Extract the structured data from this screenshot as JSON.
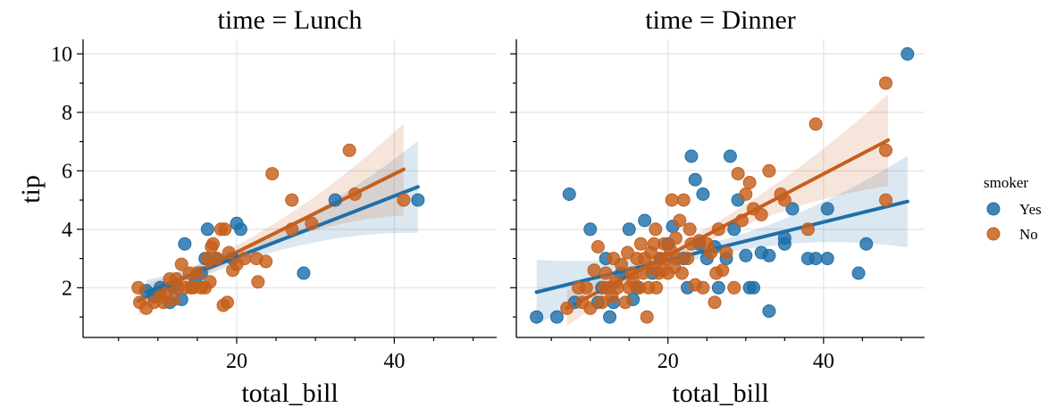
{
  "chart_data": {
    "type": "scatter",
    "xlabel": "total_bill",
    "ylabel": "tip",
    "x_ticks": [
      20,
      40
    ],
    "y_ticks": [
      2,
      4,
      6,
      8,
      10
    ],
    "xlim": [
      0.5,
      53
    ],
    "ylim": [
      0.3,
      10.5
    ],
    "grid": true,
    "colors": {
      "Yes": "#1f6fa8",
      "No": "#c65f1c"
    },
    "legend": {
      "title": "smoker",
      "placement": "right",
      "entries": [
        "Yes",
        "No"
      ]
    },
    "panels": [
      {
        "title": "time = Lunch",
        "series": [
          {
            "name": "Yes",
            "points": [
              [
                8.5,
                1.9
              ],
              [
                10.3,
                2.0
              ],
              [
                13.4,
                3.5
              ],
              [
                15.5,
                2.5
              ],
              [
                16.3,
                4.0
              ],
              [
                17.5,
                3.0
              ],
              [
                19.5,
                3.0
              ],
              [
                20.0,
                4.2
              ],
              [
                20.5,
                4.0
              ],
              [
                13.0,
                1.6
              ],
              [
                28.5,
                2.5
              ],
              [
                32.5,
                5.0
              ],
              [
                43.0,
                5.0
              ],
              [
                16.0,
                3.0
              ],
              [
                11.5,
                1.5
              ],
              [
                12.0,
                2.0
              ],
              [
                14.8,
                2.2
              ],
              [
                9.5,
                1.7
              ]
            ],
            "fit": {
              "x1": 8.5,
              "y1": 1.85,
              "x2": 43.0,
              "y2": 5.45
            }
          },
          {
            "name": "No",
            "points": [
              [
                7.5,
                2.0
              ],
              [
                7.7,
                1.5
              ],
              [
                8.5,
                1.3
              ],
              [
                9.5,
                1.5
              ],
              [
                10.3,
                1.7
              ],
              [
                10.7,
                1.5
              ],
              [
                11.0,
                1.8
              ],
              [
                11.5,
                2.3
              ],
              [
                12.0,
                1.6
              ],
              [
                12.5,
                2.0
              ],
              [
                13.0,
                2.8
              ],
              [
                13.5,
                2.0
              ],
              [
                14.0,
                2.5
              ],
              [
                14.5,
                2.0
              ],
              [
                15.0,
                2.5
              ],
              [
                15.5,
                2.0
              ],
              [
                16.0,
                2.0
              ],
              [
                16.3,
                3.0
              ],
              [
                16.6,
                2.2
              ],
              [
                17.0,
                3.5
              ],
              [
                17.5,
                3.0
              ],
              [
                18.0,
                4.0
              ],
              [
                18.5,
                4.0
              ],
              [
                18.3,
                1.4
              ],
              [
                18.8,
                1.5
              ],
              [
                19.0,
                3.2
              ],
              [
                20.0,
                2.8
              ],
              [
                21.0,
                3.0
              ],
              [
                22.5,
                3.0
              ],
              [
                22.7,
                2.2
              ],
              [
                23.7,
                2.9
              ],
              [
                24.5,
                5.9
              ],
              [
                27.0,
                5.0
              ],
              [
                27.0,
                4.0
              ],
              [
                29.5,
                4.2
              ],
              [
                34.3,
                6.7
              ],
              [
                35.0,
                5.2
              ],
              [
                41.2,
                5.0
              ],
              [
                14.2,
                2.0
              ],
              [
                12.3,
                2.3
              ],
              [
                16.8,
                3.4
              ],
              [
                19.5,
                2.6
              ]
            ],
            "fit": {
              "x1": 7.5,
              "y1": 1.55,
              "x2": 41.2,
              "y2": 6.05
            }
          }
        ]
      },
      {
        "title": "time = Dinner",
        "series": [
          {
            "name": "Yes",
            "points": [
              [
                3.1,
                1.0
              ],
              [
                5.7,
                1.0
              ],
              [
                7.3,
                5.2
              ],
              [
                8.0,
                1.5
              ],
              [
                10.0,
                4.0
              ],
              [
                11.0,
                1.5
              ],
              [
                11.5,
                2.0
              ],
              [
                12.0,
                3.0
              ],
              [
                12.5,
                1.0
              ],
              [
                13.0,
                1.5
              ],
              [
                14.0,
                2.5
              ],
              [
                15.0,
                4.0
              ],
              [
                16.0,
                2.0
              ],
              [
                17.0,
                4.3
              ],
              [
                18.0,
                2.5
              ],
              [
                19.0,
                3.0
              ],
              [
                20.0,
                3.5
              ],
              [
                20.6,
                4.1
              ],
              [
                22.0,
                3.0
              ],
              [
                22.5,
                2.0
              ],
              [
                23.0,
                6.5
              ],
              [
                23.5,
                5.7
              ],
              [
                24.0,
                3.5
              ],
              [
                25.0,
                3.0
              ],
              [
                26.0,
                3.4
              ],
              [
                26.5,
                2.0
              ],
              [
                27.5,
                3.0
              ],
              [
                28.0,
                6.5
              ],
              [
                28.5,
                4.0
              ],
              [
                29.0,
                5.0
              ],
              [
                30.0,
                3.1
              ],
              [
                30.5,
                2.0
              ],
              [
                31.0,
                2.0
              ],
              [
                32.0,
                3.2
              ],
              [
                33.0,
                3.1
              ],
              [
                33.0,
                1.2
              ],
              [
                35.0,
                3.5
              ],
              [
                35.0,
                3.7
              ],
              [
                36.0,
                4.7
              ],
              [
                38.0,
                3.0
              ],
              [
                39.0,
                3.0
              ],
              [
                40.5,
                3.0
              ],
              [
                40.5,
                4.7
              ],
              [
                44.5,
                2.5
              ],
              [
                45.5,
                3.5
              ],
              [
                50.8,
                10.0
              ],
              [
                15.5,
                1.6
              ],
              [
                24.5,
                5.2
              ]
            ],
            "fit": {
              "x1": 3.1,
              "y1": 1.85,
              "x2": 50.8,
              "y2": 4.95
            }
          },
          {
            "name": "No",
            "points": [
              [
                7.0,
                1.3
              ],
              [
                8.5,
                2.0
              ],
              [
                9.0,
                1.5
              ],
              [
                9.5,
                2.0
              ],
              [
                10.0,
                1.3
              ],
              [
                10.5,
                2.6
              ],
              [
                11.0,
                3.4
              ],
              [
                11.5,
                1.5
              ],
              [
                11.8,
                2.0
              ],
              [
                12.0,
                2.5
              ],
              [
                12.5,
                2.0
              ],
              [
                12.8,
                1.7
              ],
              [
                13.0,
                3.0
              ],
              [
                13.3,
                2.2
              ],
              [
                13.5,
                2.0
              ],
              [
                14.0,
                2.8
              ],
              [
                14.5,
                1.5
              ],
              [
                14.8,
                3.2
              ],
              [
                15.0,
                2.0
              ],
              [
                15.3,
                2.5
              ],
              [
                15.5,
                2.2
              ],
              [
                16.0,
                3.0
              ],
              [
                16.3,
                2.0
              ],
              [
                16.5,
                3.5
              ],
              [
                16.8,
                2.5
              ],
              [
                17.0,
                3.0
              ],
              [
                17.3,
                1.0
              ],
              [
                17.5,
                2.0
              ],
              [
                17.8,
                3.2
              ],
              [
                18.0,
                2.7
              ],
              [
                18.2,
                3.5
              ],
              [
                18.5,
                2.0
              ],
              [
                18.8,
                2.5
              ],
              [
                19.0,
                3.0
              ],
              [
                19.3,
                2.6
              ],
              [
                19.5,
                3.5
              ],
              [
                19.8,
                3.0
              ],
              [
                20.0,
                2.5
              ],
              [
                20.3,
                3.3
              ],
              [
                20.5,
                5.0
              ],
              [
                20.8,
                2.7
              ],
              [
                21.0,
                3.7
              ],
              [
                21.2,
                3.0
              ],
              [
                21.5,
                4.3
              ],
              [
                21.8,
                2.5
              ],
              [
                22.0,
                5.0
              ],
              [
                22.5,
                3.0
              ],
              [
                23.0,
                3.5
              ],
              [
                23.5,
                2.1
              ],
              [
                24.0,
                3.6
              ],
              [
                24.5,
                2.0
              ],
              [
                25.0,
                3.5
              ],
              [
                25.5,
                3.2
              ],
              [
                26.0,
                1.5
              ],
              [
                26.5,
                4.0
              ],
              [
                27.0,
                2.6
              ],
              [
                27.5,
                3.2
              ],
              [
                28.5,
                2.0
              ],
              [
                29.0,
                5.9
              ],
              [
                29.5,
                4.3
              ],
              [
                30.0,
                5.2
              ],
              [
                30.5,
                5.6
              ],
              [
                31.0,
                4.7
              ],
              [
                32.0,
                4.5
              ],
              [
                33.0,
                6.0
              ],
              [
                34.5,
                5.2
              ],
              [
                35.0,
                5.0
              ],
              [
                38.0,
                4.0
              ],
              [
                39.0,
                7.6
              ],
              [
                48.0,
                9.0
              ],
              [
                48.0,
                6.7
              ],
              [
                48.0,
                5.0
              ],
              [
                26.2,
                2.5
              ],
              [
                22.8,
                4.0
              ],
              [
                18.4,
                4.0
              ]
            ],
            "fit": {
              "x1": 7.0,
              "y1": 1.3,
              "x2": 48.3,
              "y2": 7.05
            }
          }
        ]
      }
    ]
  }
}
